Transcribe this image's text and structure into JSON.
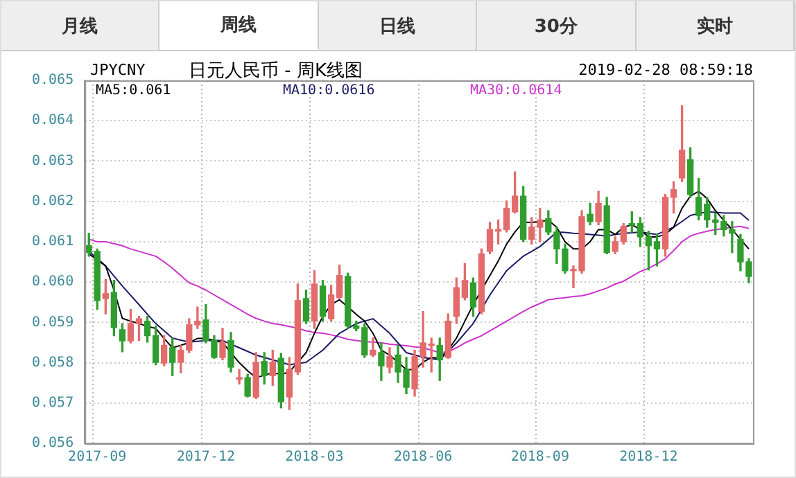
{
  "chart_data": {
    "type": "candlestick",
    "title": "日元人民币 - 周K线图",
    "annotations": [
      "月线",
      "周线",
      "日线",
      "30分",
      "实时",
      "JPYCNY",
      "2019-02-28 08:59:18"
    ],
    "categories": [
      null,
      "2017-09",
      null,
      null,
      null,
      null,
      null,
      null,
      null,
      null,
      null,
      null,
      null,
      null,
      "2017-12",
      null,
      null,
      null,
      null,
      null,
      null,
      null,
      null,
      null,
      null,
      null,
      null,
      "2018-03",
      null,
      null,
      null,
      null,
      null,
      null,
      null,
      null,
      null,
      null,
      null,
      null,
      "2018-06",
      null,
      null,
      null,
      null,
      null,
      null,
      null,
      null,
      null,
      null,
      null,
      null,
      null,
      "2018-09",
      null,
      null,
      null,
      null,
      null,
      null,
      null,
      null,
      null,
      null,
      null,
      null,
      "2018-12",
      null,
      null,
      null,
      null,
      null,
      null,
      null,
      null,
      null,
      null,
      null,
      null
    ],
    "ohlc": [
      [
        0.0609,
        0.06121,
        0.06064,
        0.06073
      ],
      [
        0.06076,
        0.06082,
        0.05932,
        0.05954
      ],
      [
        0.05959,
        0.06006,
        0.05921,
        0.05971
      ],
      [
        0.05974,
        0.06004,
        0.05867,
        0.05887
      ],
      [
        0.05882,
        0.05897,
        0.05827,
        0.05854
      ],
      [
        0.05854,
        0.05932,
        0.05849,
        0.05897
      ],
      [
        0.05897,
        0.05915,
        0.05855,
        0.05909
      ],
      [
        0.05903,
        0.05915,
        0.05851,
        0.05867
      ],
      [
        0.05867,
        0.05891,
        0.05795,
        0.05801
      ],
      [
        0.05799,
        0.05867,
        0.05792,
        0.05843
      ],
      [
        0.05837,
        0.05861,
        0.05768,
        0.05801
      ],
      [
        0.05801,
        0.05843,
        0.05775,
        0.05831
      ],
      [
        0.05831,
        0.05909,
        0.05825,
        0.05894
      ],
      [
        0.05894,
        0.05938,
        0.05885,
        0.05903
      ],
      [
        0.05906,
        0.05944,
        0.05849,
        0.05855
      ],
      [
        0.05855,
        0.05867,
        0.05811,
        0.05813
      ],
      [
        0.05813,
        0.05885,
        0.05807,
        0.05851
      ],
      [
        0.05855,
        0.05875,
        0.05777,
        0.05789
      ],
      [
        0.05759,
        0.05783,
        0.05747,
        0.05763
      ],
      [
        0.05763,
        0.05771,
        0.05715,
        0.05717
      ],
      [
        0.05715,
        0.05825,
        0.05711,
        0.05801
      ],
      [
        0.05803,
        0.05825,
        0.05747,
        0.05768
      ],
      [
        0.05768,
        0.05831,
        0.05744,
        0.05801
      ],
      [
        0.05811,
        0.05823,
        0.05688,
        0.05703
      ],
      [
        0.05715,
        0.05813,
        0.05684,
        0.05783
      ],
      [
        0.05777,
        0.05995,
        0.05771,
        0.05954
      ],
      [
        0.05959,
        0.0598,
        0.05897,
        0.05903
      ],
      [
        0.05903,
        0.06028,
        0.05885,
        0.05995
      ],
      [
        0.0599,
        0.06004,
        0.05903,
        0.05915
      ],
      [
        0.05909,
        0.05992,
        0.05903,
        0.05968
      ],
      [
        0.05962,
        0.06042,
        0.05959,
        0.06016
      ],
      [
        0.06014,
        0.06022,
        0.05885,
        0.05891
      ],
      [
        0.05891,
        0.05903,
        0.05879,
        0.05885
      ],
      [
        0.05887,
        0.05897,
        0.05813,
        0.05819
      ],
      [
        0.05819,
        0.05861,
        0.05815,
        0.05831
      ],
      [
        0.05825,
        0.05849,
        0.05756,
        0.05792
      ],
      [
        0.05789,
        0.05837,
        0.05775,
        0.05815
      ],
      [
        0.05819,
        0.05843,
        0.05751,
        0.05777
      ],
      [
        0.05783,
        0.05813,
        0.05723,
        0.05739
      ],
      [
        0.05735,
        0.05831,
        0.05717,
        0.05815
      ],
      [
        0.05815,
        0.05927,
        0.05789,
        0.05849
      ],
      [
        0.05843,
        0.05861,
        0.05777,
        0.05846
      ],
      [
        0.05843,
        0.05861,
        0.05756,
        0.05807
      ],
      [
        0.05813,
        0.05921,
        0.05811,
        0.05903
      ],
      [
        0.05915,
        0.0601,
        0.05897,
        0.05986
      ],
      [
        0.05962,
        0.06046,
        0.05956,
        0.06004
      ],
      [
        0.05998,
        0.0601,
        0.05915,
        0.05938
      ],
      [
        0.05927,
        0.06082,
        0.05921,
        0.0607
      ],
      [
        0.06076,
        0.06148,
        0.0607,
        0.0613
      ],
      [
        0.06126,
        0.06154,
        0.06094,
        0.0613
      ],
      [
        0.0613,
        0.06201,
        0.06124,
        0.06183
      ],
      [
        0.06174,
        0.06273,
        0.06171,
        0.06213
      ],
      [
        0.06213,
        0.06237,
        0.061,
        0.06106
      ],
      [
        0.06106,
        0.0616,
        0.06094,
        0.06136
      ],
      [
        0.06136,
        0.06183,
        0.061,
        0.06154
      ],
      [
        0.06157,
        0.06177,
        0.06118,
        0.06124
      ],
      [
        0.06124,
        0.06136,
        0.06046,
        0.06082
      ],
      [
        0.06082,
        0.06094,
        0.06022,
        0.06028
      ],
      [
        0.06028,
        0.0604,
        0.05986,
        0.06031
      ],
      [
        0.06028,
        0.06177,
        0.06022,
        0.06162
      ],
      [
        0.06168,
        0.06195,
        0.06142,
        0.0615
      ],
      [
        0.0615,
        0.06225,
        0.06142,
        0.06195
      ],
      [
        0.06189,
        0.0621,
        0.0607,
        0.06073
      ],
      [
        0.06076,
        0.06112,
        0.0607,
        0.061
      ],
      [
        0.061,
        0.06145,
        0.06094,
        0.06138
      ],
      [
        0.06145,
        0.06174,
        0.06124,
        0.06141
      ],
      [
        0.06145,
        0.0616,
        0.06088,
        0.06112
      ],
      [
        0.06112,
        0.06126,
        0.0603,
        0.0609
      ],
      [
        0.061,
        0.06118,
        0.0604,
        0.06082
      ],
      [
        0.06082,
        0.06217,
        0.06064,
        0.0621
      ],
      [
        0.0621,
        0.06249,
        0.06171,
        0.06229
      ],
      [
        0.06258,
        0.06437,
        0.06249,
        0.06327
      ],
      [
        0.06303,
        0.06333,
        0.0621,
        0.06217
      ],
      [
        0.0621,
        0.06257,
        0.06154,
        0.06165
      ],
      [
        0.06193,
        0.0621,
        0.06136,
        0.06154
      ],
      [
        0.06154,
        0.06171,
        0.06118,
        0.06148
      ],
      [
        0.0615,
        0.06165,
        0.06114,
        0.0613
      ],
      [
        0.0613,
        0.0615,
        0.06073,
        0.06121
      ],
      [
        0.06106,
        0.06118,
        0.06028,
        0.0605
      ],
      [
        0.0605,
        0.06058,
        0.05998,
        0.06014
      ]
    ],
    "colors": [
      "#2f9e2f",
      "#2f9e2f",
      "#e36b6b",
      "#2f9e2f",
      "#2f9e2f",
      "#e36b6b",
      "#e36b6b",
      "#2f9e2f",
      "#2f9e2f",
      "#e36b6b",
      "#2f9e2f",
      "#e36b6b",
      "#e36b6b",
      "#e36b6b",
      "#2f9e2f",
      "#2f9e2f",
      "#e36b6b",
      "#2f9e2f",
      "#e36b6b",
      "#2f9e2f",
      "#e36b6b",
      "#2f9e2f",
      "#e36b6b",
      "#2f9e2f",
      "#e36b6b",
      "#e36b6b",
      "#2f9e2f",
      "#e36b6b",
      "#2f9e2f",
      "#e36b6b",
      "#e36b6b",
      "#2f9e2f",
      "#2f9e2f",
      "#2f9e2f",
      "#e36b6b",
      "#2f9e2f",
      "#e36b6b",
      "#2f9e2f",
      "#2f9e2f",
      "#e36b6b",
      "#e36b6b",
      "#e36b6b",
      "#2f9e2f",
      "#e36b6b",
      "#e36b6b",
      "#e36b6b",
      "#2f9e2f",
      "#e36b6b",
      "#e36b6b",
      "#e36b6b",
      "#e36b6b",
      "#e36b6b",
      "#2f9e2f",
      "#e36b6b",
      "#e36b6b",
      "#2f9e2f",
      "#2f9e2f",
      "#2f9e2f",
      "#e36b6b",
      "#e36b6b",
      "#2f9e2f",
      "#e36b6b",
      "#2f9e2f",
      "#e36b6b",
      "#e36b6b",
      "#2f9e2f",
      "#2f9e2f",
      "#2f9e2f",
      "#2f9e2f",
      "#e36b6b",
      "#e36b6b",
      "#e36b6b",
      "#2f9e2f",
      "#2f9e2f",
      "#2f9e2f",
      "#2f9e2f",
      "#2f9e2f",
      "#2f9e2f",
      "#2f9e2f",
      "#2f9e2f"
    ],
    "series": [
      {
        "name": "MA5:0.061",
        "type": "line",
        "color": "#000000",
        "values": [
          0.0607,
          0.06055,
          0.0604,
          0.0598,
          0.0591,
          0.05903,
          0.05897,
          0.0589,
          0.05885,
          0.0586,
          0.05837,
          0.05843,
          0.0585,
          0.0586,
          0.0586,
          0.05855,
          0.0585,
          0.05825,
          0.058,
          0.0578,
          0.05763,
          0.05769,
          0.05775,
          0.05771,
          0.05777,
          0.05801,
          0.05825,
          0.05873,
          0.05915,
          0.05944,
          0.05956,
          0.05938,
          0.0592,
          0.05903,
          0.05873,
          0.05831,
          0.05819,
          0.05801,
          0.05783,
          0.05783,
          0.05801,
          0.05813,
          0.05811,
          0.05831,
          0.05861,
          0.05903,
          0.05944,
          0.0598,
          0.06016,
          0.06052,
          0.06094,
          0.06124,
          0.06148,
          0.06148,
          0.0615,
          0.06153,
          0.06136,
          0.061,
          0.06082,
          0.06082,
          0.061,
          0.0613,
          0.0613,
          0.06118,
          0.06136,
          0.06142,
          0.0613,
          0.06112,
          0.06112,
          0.06118,
          0.06136,
          0.06183,
          0.06213,
          0.06225,
          0.06207,
          0.06177,
          0.06153,
          0.0613,
          0.06106,
          0.06082
        ]
      },
      {
        "name": "MA10:0.0616",
        "type": "line",
        "color": "#1a1a66",
        "values": [
          0.06076,
          0.06058,
          0.0604,
          0.06015,
          0.0599,
          0.05967,
          0.05944,
          0.0592,
          0.05897,
          0.05879,
          0.05861,
          0.05856,
          0.05851,
          0.05853,
          0.05855,
          0.05855,
          0.05855,
          0.05846,
          0.05837,
          0.05828,
          0.05819,
          0.05813,
          0.05807,
          0.05801,
          0.05795,
          0.05798,
          0.05801,
          0.05816,
          0.05831,
          0.05852,
          0.05873,
          0.05885,
          0.05897,
          0.05903,
          0.05909,
          0.05891,
          0.05873,
          0.05849,
          0.05825,
          0.05819,
          0.05813,
          0.0581,
          0.05807,
          0.05828,
          0.05849,
          0.05873,
          0.05897,
          0.05932,
          0.05968,
          0.05998,
          0.06028,
          0.06046,
          0.06064,
          0.06076,
          0.06088,
          0.06106,
          0.06124,
          0.06123,
          0.06121,
          0.0612,
          0.06118,
          0.06116,
          0.06114,
          0.06118,
          0.06121,
          0.06122,
          0.06124,
          0.06121,
          0.06118,
          0.06127,
          0.06136,
          0.0615,
          0.06165,
          0.0617,
          0.06174,
          0.06173,
          0.06171,
          0.06171,
          0.06171,
          0.06153
        ]
      },
      {
        "name": "MA30:0.0614",
        "type": "line",
        "color": "#cc33cc",
        "values": [
          0.06106,
          0.061,
          0.061,
          0.06095,
          0.0609,
          0.06082,
          0.06076,
          0.0607,
          0.06064,
          0.0605,
          0.06034,
          0.06016,
          0.05998,
          0.0599,
          0.0598,
          0.05968,
          0.05956,
          0.05944,
          0.05932,
          0.0592,
          0.0591,
          0.05903,
          0.05897,
          0.05894,
          0.0589,
          0.05885,
          0.05879,
          0.05875,
          0.05873,
          0.05869,
          0.05864,
          0.05858,
          0.05855,
          0.05852,
          0.05851,
          0.05849,
          0.05846,
          0.05844,
          0.05842,
          0.05839,
          0.05837,
          0.05831,
          0.05825,
          0.05827,
          0.05837,
          0.05849,
          0.05858,
          0.05867,
          0.05879,
          0.05891,
          0.05903,
          0.05915,
          0.05927,
          0.05938,
          0.05947,
          0.05956,
          0.05959,
          0.05961,
          0.05964,
          0.05966,
          0.05971,
          0.05978,
          0.05985,
          0.05995,
          0.06002,
          0.06014,
          0.06026,
          0.06034,
          0.06045,
          0.06058,
          0.06078,
          0.061,
          0.06114,
          0.06121,
          0.06126,
          0.0613,
          0.06133,
          0.06136,
          0.06138,
          0.06133
        ]
      }
    ],
    "ylim": [
      0.056,
      0.065
    ],
    "yticks": [
      0.056,
      0.057,
      0.058,
      0.059,
      {
        "value": 0.06,
        "label": "0.060"
      },
      0.061,
      0.062,
      0.063,
      0.064,
      0.065
    ],
    "grid": true,
    "legend": "top left",
    "marker": "none",
    "line_style": "solid"
  }
}
